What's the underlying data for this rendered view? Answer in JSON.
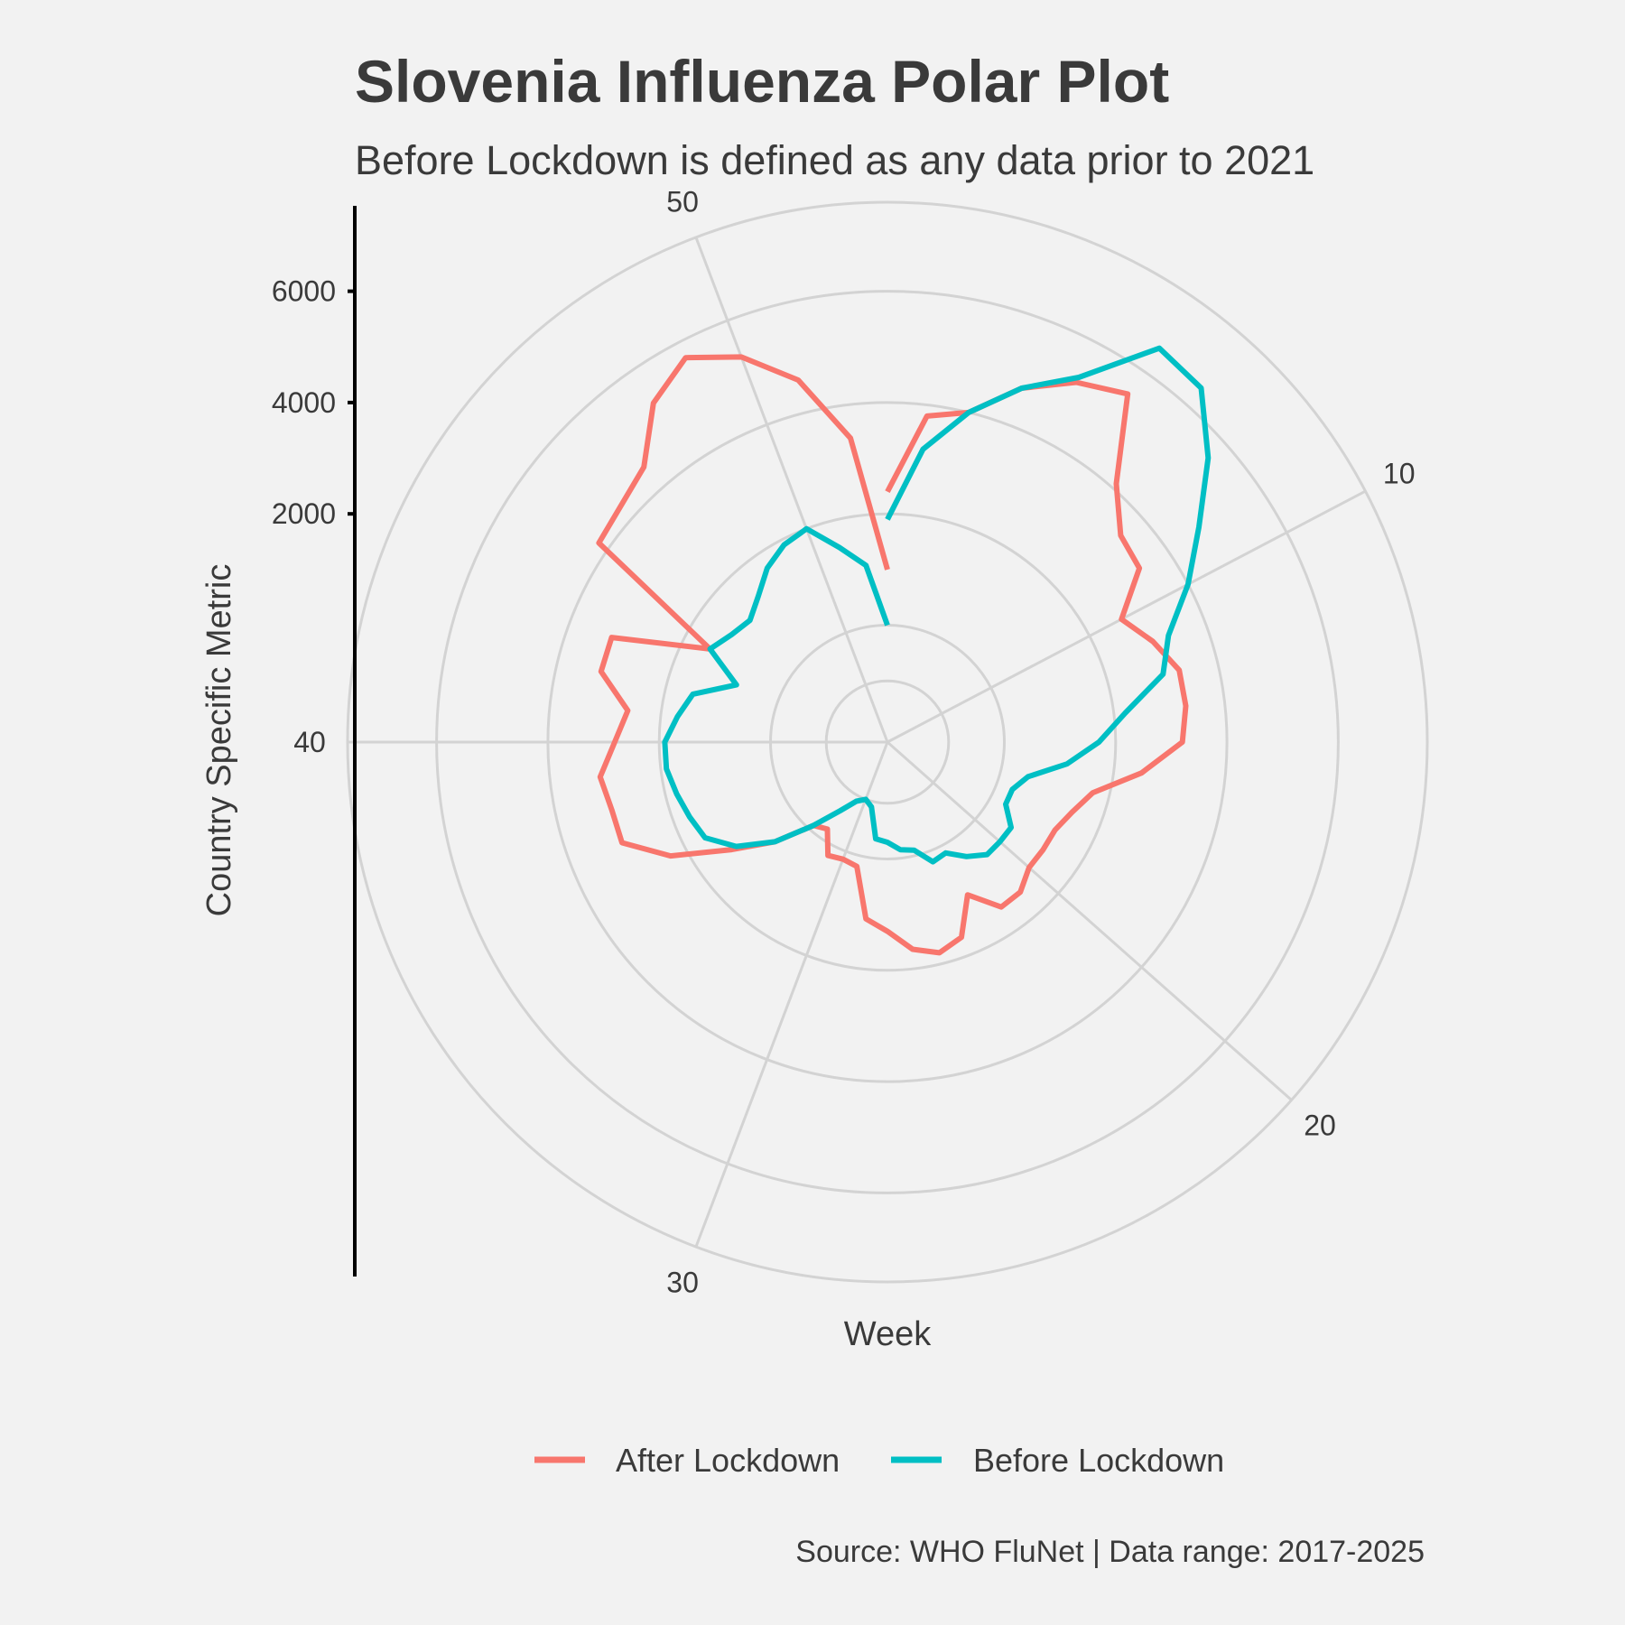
{
  "chart_data": {
    "type": "line",
    "coordinate_system": "polar",
    "title": "Slovenia Influenza Polar Plot",
    "subtitle": "Before Lockdown is defined as any data prior to 2021",
    "xlabel": "Week",
    "ylabel": "Country Specific Metric",
    "caption": "Source: WHO FluNet | Data range: 2017-2025",
    "theta_ticks": [
      10,
      20,
      30,
      40,
      50
    ],
    "theta_range": [
      1,
      53
    ],
    "r_ticks": [
      2000,
      4000,
      6000
    ],
    "r_range": [
      -2100,
      7600
    ],
    "grid": true,
    "legend_position": "bottom",
    "series": [
      {
        "name": "After Lockdown",
        "color": "#F8766D",
        "x": [
          1,
          2,
          3,
          4,
          5,
          6,
          7,
          8,
          9,
          10,
          11,
          12,
          13,
          14,
          15,
          16,
          17,
          18,
          19,
          20,
          21,
          22,
          23,
          24,
          25,
          26,
          27,
          28,
          29,
          30,
          31,
          32,
          33,
          34,
          35,
          36,
          37,
          38,
          39,
          40,
          41,
          42,
          43,
          44,
          45,
          46,
          47,
          48,
          49,
          50,
          51,
          52,
          53
        ],
        "values": [
          2400,
          3800,
          4000,
          4700,
          5200,
          5500,
          4100,
          3500,
          3400,
          2650,
          3000,
          3300,
          3300,
          3200,
          2500,
          1700,
          1450,
          1300,
          1300,
          1300,
          1500,
          1500,
          1000,
          1650,
          1800,
          1650,
          1300,
          1100,
          200,
          150,
          200,
          -200,
          -100,
          600,
          1300,
          2300,
          3000,
          3000,
          3100,
          2800,
          2600,
          3200,
          3200,
          1500,
          4200,
          4300,
          4500,
          5300,
          5700,
          5300,
          4600,
          3400,
          1000
        ]
      },
      {
        "name": "Before Lockdown",
        "color": "#00BFC4",
        "x": [
          1,
          2,
          3,
          4,
          5,
          6,
          7,
          8,
          9,
          10,
          11,
          12,
          13,
          14,
          15,
          16,
          17,
          18,
          19,
          20,
          21,
          22,
          23,
          24,
          25,
          26,
          27,
          28,
          29,
          30,
          31,
          32,
          33,
          34,
          35,
          36,
          37,
          38,
          39,
          40,
          41,
          42,
          43,
          44,
          45,
          46,
          47,
          48,
          49,
          50,
          51,
          52,
          53
        ],
        "values": [
          1900,
          3200,
          4000,
          4700,
          5300,
          6500,
          6400,
          5600,
          4700,
          4000,
          3300,
          3000,
          2200,
          1700,
          1150,
          500,
          300,
          300,
          600,
          600,
          600,
          400,
          150,
          200,
          -100,
          -150,
          -300,
          -350,
          -900,
          -1000,
          -900,
          -600,
          -100,
          600,
          1200,
          1600,
          1700,
          1800,
          1900,
          1900,
          1700,
          1500,
          800,
          1500,
          1300,
          1200,
          1400,
          1700,
          1900,
          2000,
          1500,
          1100,
          0
        ]
      }
    ]
  }
}
